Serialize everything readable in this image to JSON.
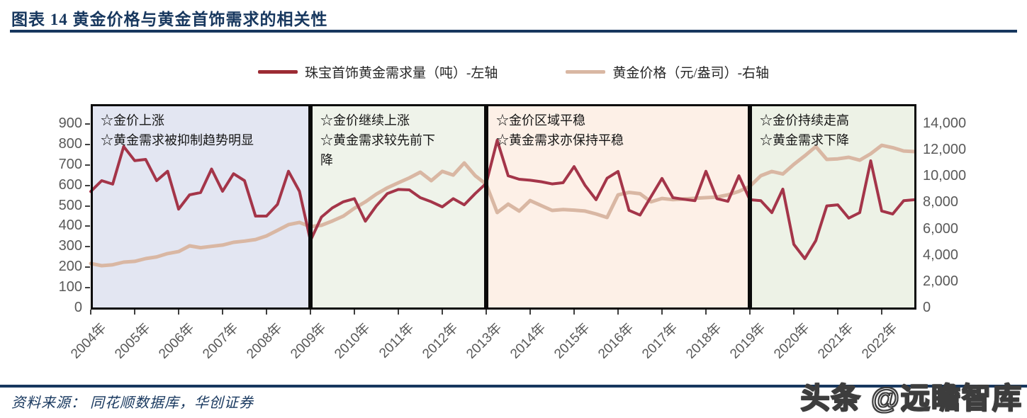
{
  "header": {
    "title": "图表 14  黄金价格与黄金首饰需求的相关性"
  },
  "legend": [
    {
      "label": "珠宝首饰黄金需求量（吨）-左轴",
      "color": "#9c2b33"
    },
    {
      "label": "黄金价格（元/盎司）-右轴",
      "color": "#d9b7a3"
    }
  ],
  "chart_data": {
    "type": "line",
    "title": "黄金价格与黄金首饰需求的相关性",
    "x_start_year": 2004,
    "x_step_years": 0.25,
    "x_tick_labels": [
      "2004年",
      "2005年",
      "2006年",
      "2007年",
      "2008年",
      "2009年",
      "2010年",
      "2011年",
      "2012年",
      "2013年",
      "2014年",
      "2015年",
      "2016年",
      "2017年",
      "2018年",
      "2019年",
      "2020年",
      "2021年",
      "2022年"
    ],
    "left_axis": {
      "min": 0,
      "max": 900,
      "ticks": [
        "0",
        "100",
        "200",
        "300",
        "400",
        "500",
        "600",
        "700",
        "800",
        "900"
      ]
    },
    "right_axis": {
      "min": 0,
      "max": 14000,
      "ticks": [
        "0",
        "2,000",
        "4,000",
        "6,000",
        "8,000",
        "10,000",
        "12,000",
        "14,000"
      ]
    },
    "regions": [
      {
        "start_year": 2004,
        "end_year": 2009,
        "bg": "#e3e6f2",
        "note": "☆金价上涨\n☆黄金需求被抑制趋势明显"
      },
      {
        "start_year": 2009,
        "end_year": 2013,
        "bg": "#eff3ea",
        "note": "☆金价继续上涨\n☆黄金需求较先前下降"
      },
      {
        "start_year": 2013,
        "end_year": 2019,
        "bg": "#fdf0e7",
        "note": "☆金价区域平稳\n☆黄金需求亦保持平稳"
      },
      {
        "start_year": 2019,
        "end_year": 2022.79,
        "bg": "#edf2e6",
        "note": "☆金价持续走高\n☆黄金需求下降"
      }
    ],
    "series": [
      {
        "name": "黄金价格（元/盎司）-右轴",
        "axis": "right",
        "color": "#d9b7a3",
        "width": 5,
        "values": [
          3400,
          3230,
          3300,
          3500,
          3560,
          3770,
          3900,
          4150,
          4300,
          4740,
          4600,
          4700,
          4800,
          5010,
          5100,
          5220,
          5490,
          5920,
          6350,
          6520,
          6200,
          6300,
          6630,
          7000,
          7590,
          8080,
          8670,
          9150,
          9530,
          9900,
          10340,
          9690,
          10400,
          10120,
          11040,
          10070,
          9420,
          7270,
          7910,
          7380,
          8180,
          7800,
          7430,
          7500,
          7450,
          7380,
          7160,
          6890,
          8610,
          8800,
          8700,
          8080,
          8340,
          8250,
          8300,
          8350,
          8400,
          8450,
          8610,
          8880,
          9260,
          10070,
          10390,
          10200,
          10930,
          11580,
          12280,
          11310,
          11350,
          11470,
          11250,
          11740,
          12380,
          12200,
          11950,
          11900
        ]
      },
      {
        "name": "珠宝首饰黄金需求量（吨）-左轴",
        "axis": "left",
        "color": "#a43549",
        "width": 4,
        "values": [
          570,
          623,
          606,
          790,
          721,
          727,
          623,
          669,
          484,
          554,
          565,
          680,
          571,
          657,
          623,
          450,
          450,
          507,
          669,
          571,
          330,
          445,
          490,
          520,
          535,
          425,
          500,
          560,
          580,
          578,
          540,
          520,
          495,
          535,
          505,
          560,
          610,
          820,
          647,
          630,
          625,
          618,
          607,
          613,
          692,
          600,
          530,
          635,
          668,
          478,
          455,
          545,
          634,
          540,
          532,
          525,
          669,
          535,
          522,
          647,
          530,
          525,
          467,
          582,
          312,
          242,
          330,
          500,
          505,
          440,
          467,
          720,
          475,
          460,
          525,
          530
        ]
      }
    ],
    "legend_position": "top",
    "grid": false
  },
  "footer": {
    "source": "资料来源： 同花顺数据库，华创证券",
    "watermark": "头条 @远瞻智库"
  },
  "colors": {
    "accent_navy": "#17375e",
    "axis_text": "#595959",
    "region_border": "#0a0a0a"
  }
}
